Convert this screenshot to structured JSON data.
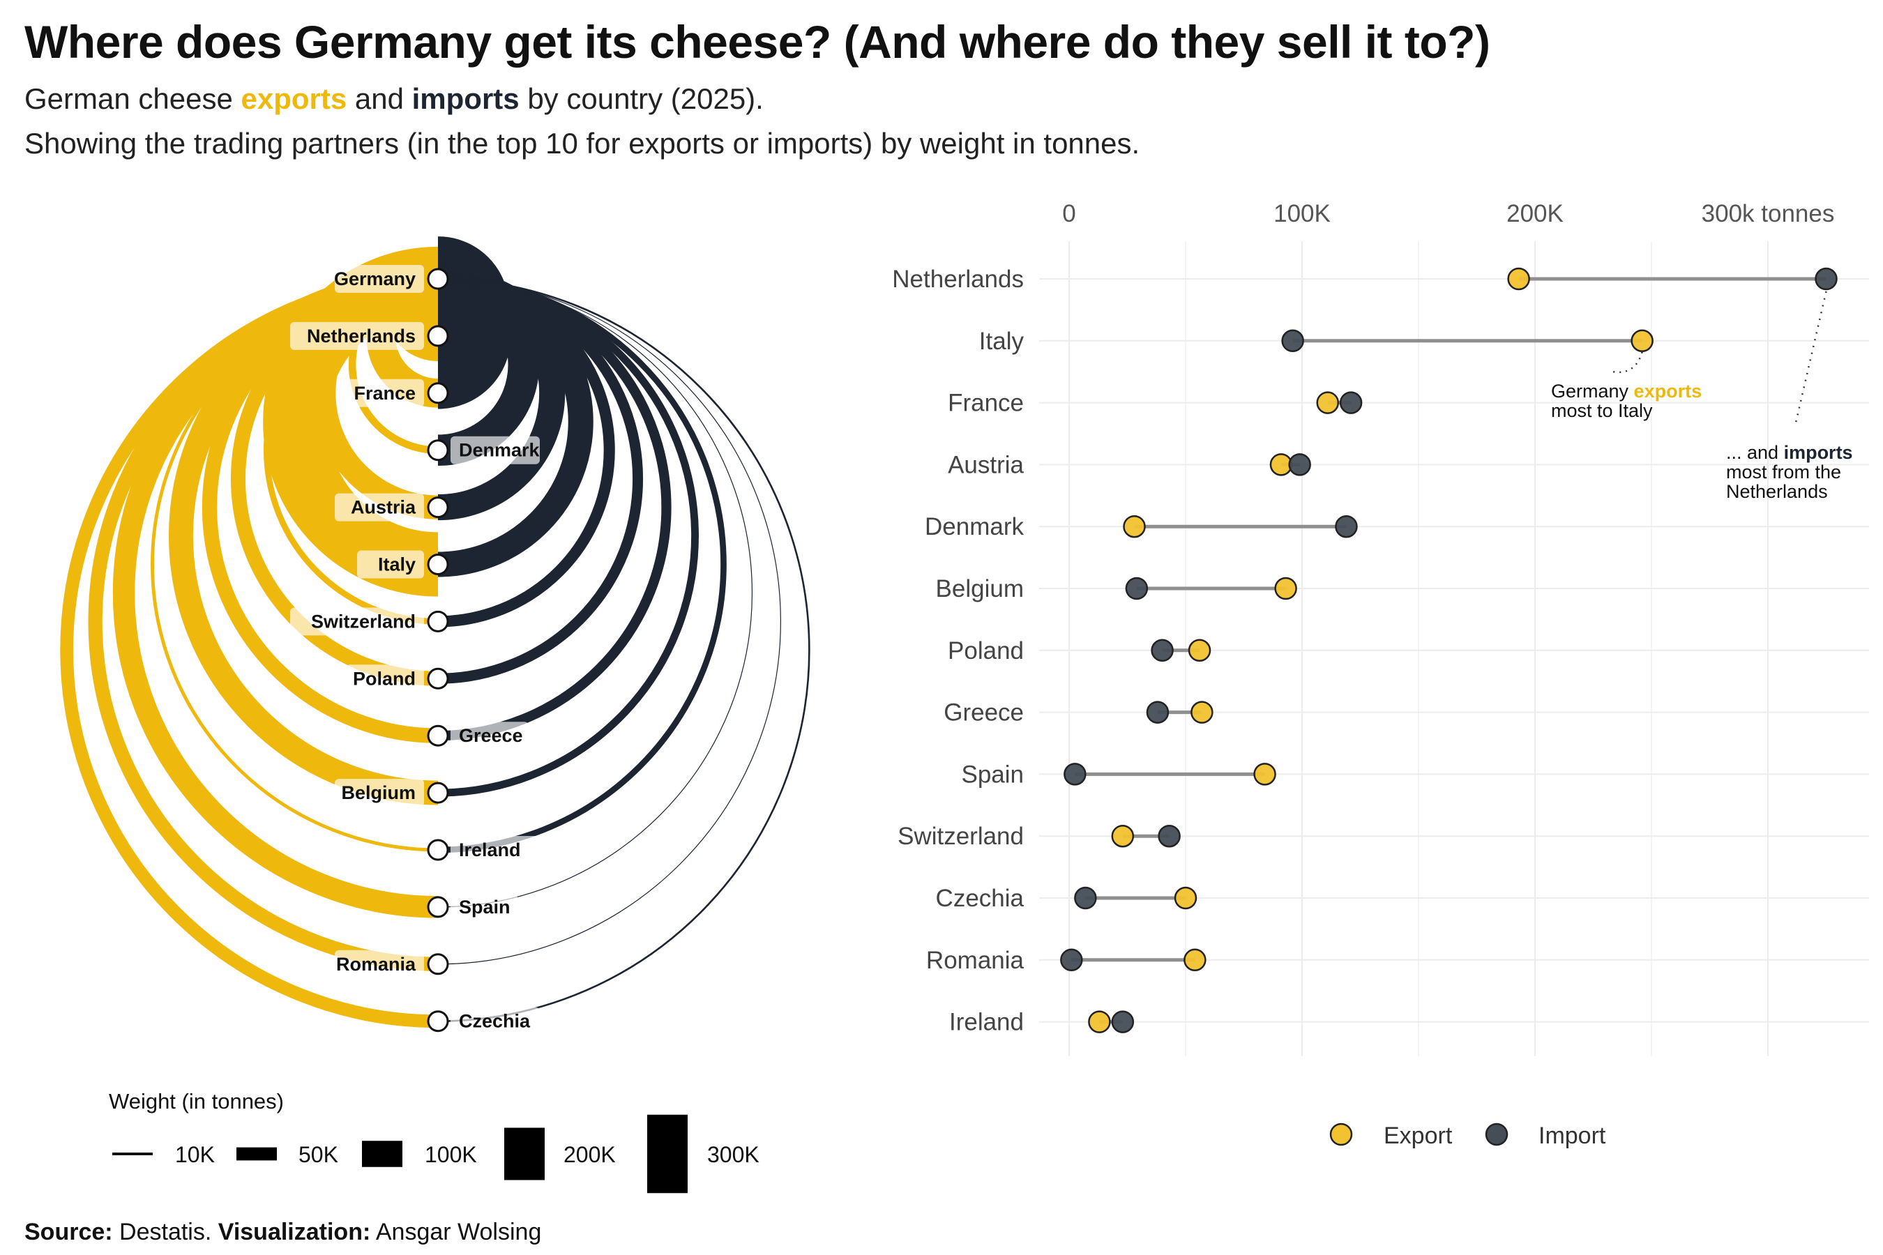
{
  "title": "Where does Germany get its cheese? (And where do they sell it to?)",
  "subtitle": {
    "line1_pre": "German cheese ",
    "exports_word": "exports",
    "line1_mid": " and ",
    "imports_word": "imports",
    "line1_post": " by country (2025).",
    "line2": "Showing the trading partners (in the top 10 for exports or imports) by weight in tonnes."
  },
  "colors": {
    "export": "#EFB80D",
    "import": "#1C2531",
    "export_dot": "#F2C230",
    "import_dot": "#454E57"
  },
  "arc_diagram": {
    "hub": "Germany",
    "node_order": [
      "Germany",
      "Netherlands",
      "France",
      "Denmark",
      "Austria",
      "Italy",
      "Switzerland",
      "Poland",
      "Greece",
      "Belgium",
      "Ireland",
      "Spain",
      "Romania",
      "Czechia"
    ],
    "legend_title": "Weight (in tonnes)",
    "legend": [
      {
        "label": "10K",
        "value": 10000
      },
      {
        "label": "50K",
        "value": 50000
      },
      {
        "label": "100K",
        "value": 100000
      },
      {
        "label": "200K",
        "value": 200000
      },
      {
        "label": "300K",
        "value": 300000
      }
    ]
  },
  "chart_data": {
    "type": "dumbbell",
    "unit": "tonnes",
    "x_ticks": [
      {
        "value": 0,
        "label": "0"
      },
      {
        "value": 100000,
        "label": "100K"
      },
      {
        "value": 200000,
        "label": "200K"
      },
      {
        "value": 300000,
        "label": "300k tonnes"
      }
    ],
    "xlim": [
      0,
      340000
    ],
    "grid": true,
    "legend_position": "bottom",
    "series_names": {
      "export": "Export",
      "import": "Import"
    },
    "categories": [
      "Netherlands",
      "Italy",
      "France",
      "Austria",
      "Denmark",
      "Belgium",
      "Poland",
      "Greece",
      "Spain",
      "Switzerland",
      "Czechia",
      "Romania",
      "Ireland"
    ],
    "series": [
      {
        "name": "Export",
        "values": [
          193000,
          246000,
          111000,
          91000,
          28000,
          93000,
          56000,
          57000,
          84000,
          23000,
          50000,
          54000,
          13000
        ]
      },
      {
        "name": "Import",
        "values": [
          325000,
          96000,
          121000,
          99000,
          119000,
          29000,
          40000,
          38000,
          2500,
          43000,
          7000,
          1000,
          23000
        ]
      }
    ],
    "annotations": {
      "export_pre": "Germany ",
      "export_word": "exports",
      "export_post": "most to Italy",
      "import_pre": "... and ",
      "import_word": "imports",
      "import_line2": "most from the",
      "import_line3": "Netherlands"
    }
  },
  "source": {
    "label": "Source:",
    "value": " Destatis. ",
    "viz_label": "Visualization:",
    "viz_value": " Ansgar Wolsing"
  }
}
